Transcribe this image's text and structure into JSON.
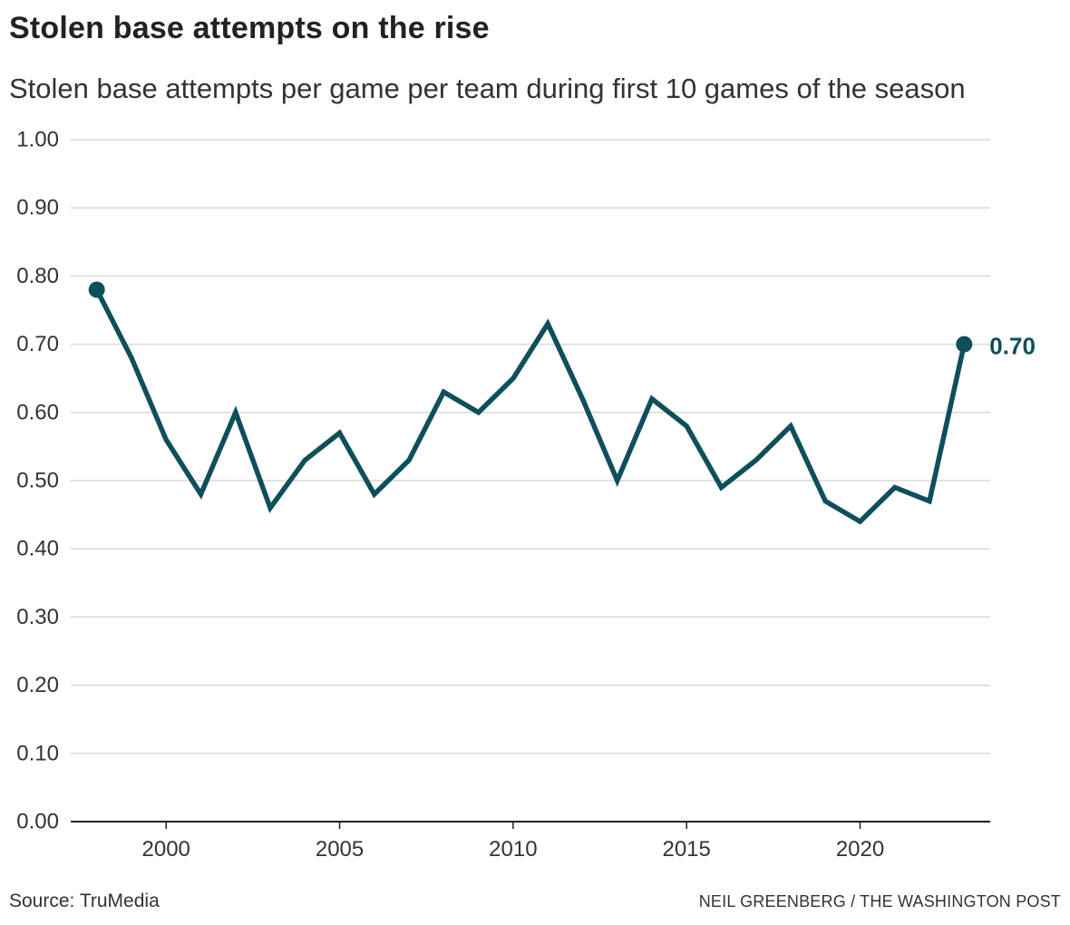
{
  "header": {
    "title": "Stolen base attempts on the rise",
    "subtitle": "Stolen base attempts per game per team during first 10 games of the season"
  },
  "footer": {
    "source": "Source: TruMedia",
    "credit": "NEIL GREENBERG / THE WASHINGTON POST"
  },
  "colors": {
    "line": "#0f4f5c",
    "grid": "#d9d9d9",
    "axis": "#222222",
    "text": "#333333"
  },
  "chart_data": {
    "type": "line",
    "title": "Stolen base attempts on the rise",
    "subtitle": "Stolen base attempts per game per team during first 10 games of the season",
    "xlabel": "",
    "ylabel": "",
    "x": [
      1998,
      1999,
      2000,
      2001,
      2002,
      2003,
      2004,
      2005,
      2006,
      2007,
      2008,
      2009,
      2010,
      2011,
      2012,
      2013,
      2014,
      2015,
      2016,
      2017,
      2018,
      2019,
      2020,
      2021,
      2022,
      2023
    ],
    "values": [
      0.78,
      0.68,
      0.56,
      0.48,
      0.6,
      0.46,
      0.53,
      0.57,
      0.48,
      0.53,
      0.63,
      0.6,
      0.65,
      0.73,
      0.62,
      0.5,
      0.62,
      0.58,
      0.49,
      0.53,
      0.58,
      0.47,
      0.44,
      0.49,
      0.47,
      0.7
    ],
    "xlim": [
      1997.25,
      2023.75
    ],
    "ylim": [
      0,
      1
    ],
    "x_ticks": [
      2000,
      2005,
      2010,
      2015,
      2020
    ],
    "x_tick_labels": [
      "2000",
      "2005",
      "2010",
      "2015",
      "2020"
    ],
    "y_ticks": [
      0,
      0.1,
      0.2,
      0.3,
      0.4,
      0.5,
      0.6,
      0.7,
      0.8,
      0.9,
      1.0
    ],
    "y_tick_labels": [
      "0.00",
      "0.10",
      "0.20",
      "0.30",
      "0.40",
      "0.50",
      "0.60",
      "0.70",
      "0.80",
      "0.90",
      "1.00"
    ],
    "grid": true,
    "highlighted_points": [
      1998,
      2023
    ],
    "annotation": {
      "x": 2023,
      "value": 0.7,
      "label": "0.70"
    }
  }
}
